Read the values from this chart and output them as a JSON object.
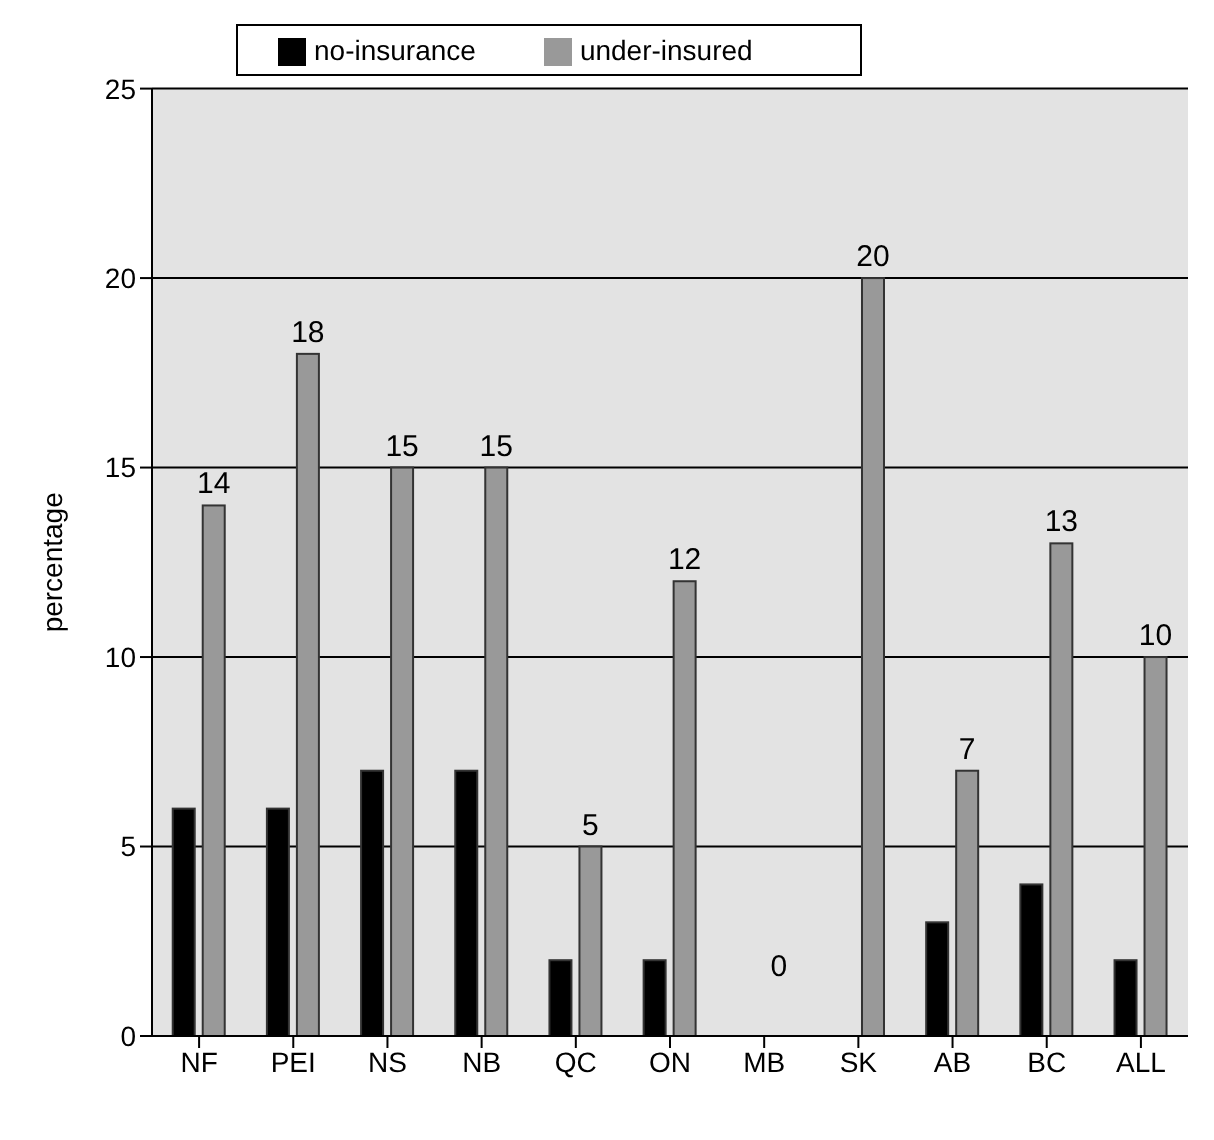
{
  "chart_data": {
    "type": "bar",
    "ylabel": "percentage",
    "categories": [
      "NF",
      "PEI",
      "NS",
      "NB",
      "QC",
      "ON",
      "MB",
      "SK",
      "AB",
      "BC",
      "ALL"
    ],
    "series": [
      {
        "name": "no-insurance",
        "color": "#000000",
        "values": [
          6,
          6,
          7,
          7,
          2,
          2,
          0,
          0,
          3,
          4,
          2
        ]
      },
      {
        "name": "under-insured",
        "color": "#999999",
        "values": [
          14,
          18,
          15,
          15,
          5,
          12,
          0,
          20,
          7,
          13,
          10
        ],
        "value_labels": [
          "14",
          "18",
          "15",
          "15",
          "5",
          "12",
          "0",
          "20",
          "7",
          "13",
          "10"
        ]
      }
    ],
    "ylim": [
      0,
      25
    ],
    "yticks": [
      0,
      5,
      10,
      15,
      20,
      25
    ],
    "grid": "y",
    "legend": "top"
  }
}
